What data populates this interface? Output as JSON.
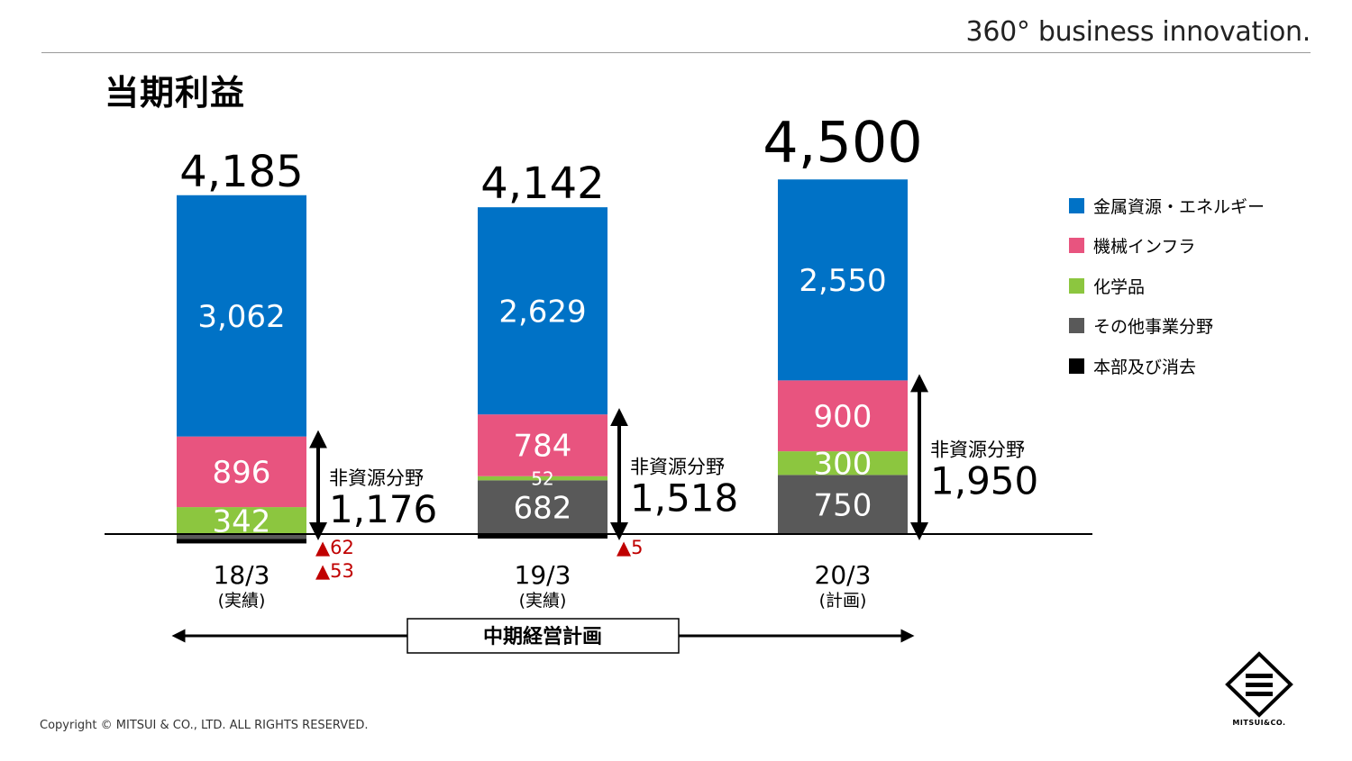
{
  "header": {
    "tagline": "360° business innovation."
  },
  "page": {
    "title": "当期利益"
  },
  "chart_data": {
    "type": "bar",
    "stacked": true,
    "title": "当期利益",
    "categories": [
      "18/3",
      "19/3",
      "20/3"
    ],
    "category_sublabels": [
      "(実績)",
      "(実績)",
      "(計画)"
    ],
    "totals": [
      "4,185",
      "4,142",
      "4,500"
    ],
    "series": [
      {
        "name": "金属資源・エネルギー",
        "color": "#0072c6",
        "values": [
          3062,
          2629,
          2550
        ],
        "labels": [
          "3,062",
          "2,629",
          "2,550"
        ]
      },
      {
        "name": "機械インフラ",
        "color": "#e8547f",
        "values": [
          896,
          784,
          900
        ],
        "labels": [
          "896",
          "784",
          "900"
        ]
      },
      {
        "name": "化学品",
        "color": "#8cc63f",
        "values": [
          342,
          52,
          300
        ],
        "labels": [
          "342",
          "52",
          "300"
        ]
      },
      {
        "name": "その他事業分野",
        "color": "#595959",
        "values": [
          -62,
          682,
          750
        ],
        "labels": [
          "",
          "682",
          "750"
        ]
      },
      {
        "name": "本部及び消去",
        "color": "#000000",
        "values": [
          -53,
          -5,
          0
        ],
        "labels": [
          "",
          "",
          ""
        ]
      }
    ],
    "negative_annotations": [
      {
        "category": "18/3",
        "labels": [
          "▲62",
          "▲53"
        ]
      },
      {
        "category": "19/3",
        "labels": [
          "▲5"
        ]
      }
    ],
    "non_resource": {
      "label": "非資源分野",
      "values": [
        "1,176",
        "1,518",
        "1,950"
      ]
    },
    "period_bracket": {
      "label": "中期経営計画"
    },
    "legend_position": "right",
    "grid": false
  },
  "footer": {
    "copyright": "Copyright © MITSUI & CO., LTD. ALL RIGHTS RESERVED.",
    "logo_text": "MITSUI&CO."
  }
}
